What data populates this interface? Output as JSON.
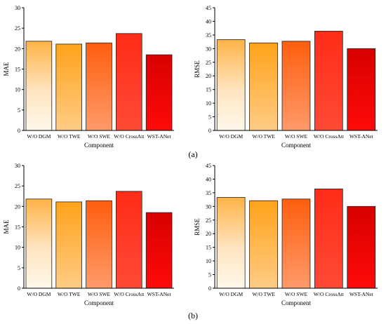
{
  "figure_labels": [
    "(a)",
    "(b)"
  ],
  "chart_data": [
    {
      "type": "bar",
      "categories": [
        "W/O DGM",
        "W/O TWE",
        "W/O SWE",
        "W/O CrossAtt",
        "WST-ANet"
      ],
      "values": [
        21.8,
        21.1,
        21.4,
        23.7,
        18.5
      ],
      "xlabel": "Component",
      "ylabel": "MAE",
      "ylim": [
        0,
        30
      ],
      "yticks": [
        0,
        5,
        10,
        15,
        20,
        25,
        30
      ],
      "grid": false,
      "legend": "none"
    },
    {
      "type": "bar",
      "categories": [
        "W/O DGM",
        "W/O TWE",
        "W/O SWE",
        "W/O CrossAtt",
        "WST-ANet"
      ],
      "values": [
        33.3,
        32.1,
        32.7,
        36.4,
        30.0
      ],
      "xlabel": "Component",
      "ylabel": "RMSE",
      "ylim": [
        0,
        45
      ],
      "yticks": [
        0,
        5,
        10,
        15,
        20,
        25,
        30,
        35,
        40,
        45
      ],
      "grid": false,
      "legend": "none"
    },
    {
      "type": "bar",
      "categories": [
        "W/O DGM",
        "W/O TWE",
        "W/O SWE",
        "W/O CrossAtt",
        "WST-ANet"
      ],
      "values": [
        21.8,
        21.1,
        21.4,
        23.7,
        18.5
      ],
      "xlabel": "Component",
      "ylabel": "MAE",
      "ylim": [
        0,
        30
      ],
      "yticks": [
        0,
        5,
        10,
        15,
        20,
        25,
        30
      ],
      "grid": false,
      "legend": "none"
    },
    {
      "type": "bar",
      "categories": [
        "W/O DGM",
        "W/O TWE",
        "W/O SWE",
        "W/O CrossAtt",
        "WST-ANet"
      ],
      "values": [
        33.3,
        32.1,
        32.7,
        36.4,
        30.0
      ],
      "xlabel": "Component",
      "ylabel": "RMSE",
      "ylim": [
        0,
        45
      ],
      "yticks": [
        0,
        5,
        10,
        15,
        20,
        25,
        30,
        35,
        40,
        45
      ],
      "grid": false,
      "legend": "none"
    }
  ]
}
